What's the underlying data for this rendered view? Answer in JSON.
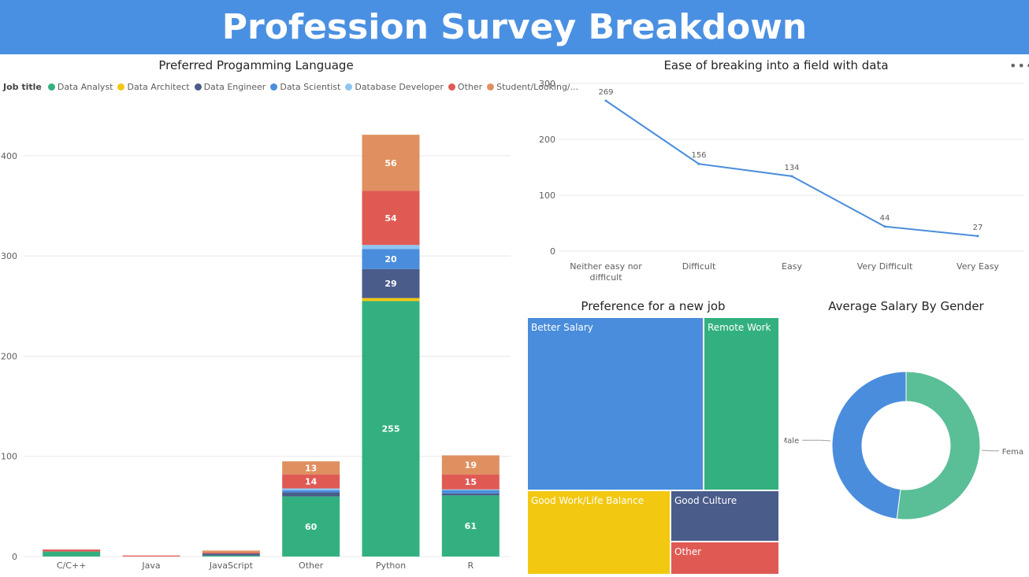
{
  "header": {
    "title": "Profession Survey Breakdown"
  },
  "more_label": "•••",
  "chart_data": [
    {
      "type": "bar",
      "stacked": true,
      "title": "Preferred Progamming Language",
      "legend_title": "Job title",
      "legend_position": "top-left",
      "categories": [
        "C/C++",
        "Java",
        "JavaScript",
        "Other",
        "Python",
        "R"
      ],
      "yticks": [
        0,
        100,
        200,
        300,
        400
      ],
      "ylim": [
        0,
        440
      ],
      "grid": true,
      "series": [
        {
          "name": "Data Analyst",
          "color": "#33b07f",
          "values": [
            5,
            0,
            1,
            60,
            255,
            61
          ],
          "labels": [
            "",
            "",
            "",
            "60",
            "255",
            "61"
          ]
        },
        {
          "name": "Data Architect",
          "color": "#f2c811",
          "values": [
            0,
            0,
            0,
            0,
            3,
            0
          ],
          "labels": [
            "",
            "",
            "",
            "",
            "",
            ""
          ]
        },
        {
          "name": "Data Engineer",
          "color": "#4a5c8a",
          "values": [
            0,
            0,
            2,
            4,
            29,
            2
          ],
          "labels": [
            "",
            "",
            "",
            "",
            "29",
            ""
          ]
        },
        {
          "name": "Data Scientist",
          "color": "#4a8ddc",
          "values": [
            0,
            0,
            0,
            2,
            20,
            3
          ],
          "labels": [
            "",
            "",
            "",
            "",
            "20",
            ""
          ]
        },
        {
          "name": "Database Developer",
          "color": "#8ec5f0",
          "values": [
            0,
            0,
            0,
            2,
            4,
            1
          ],
          "labels": [
            "",
            "",
            "",
            "",
            "",
            ""
          ]
        },
        {
          "name": "Other",
          "color": "#e05a54",
          "values": [
            2,
            1,
            1,
            14,
            54,
            15
          ],
          "labels": [
            "",
            "",
            "",
            "14",
            "54",
            "15"
          ]
        },
        {
          "name": "Student/Looking/...",
          "color": "#e09060",
          "values": [
            0,
            0,
            2,
            13,
            56,
            19
          ],
          "labels": [
            "",
            "",
            "",
            "13",
            "56",
            "19"
          ]
        }
      ]
    },
    {
      "type": "line",
      "title": "Ease of breaking into a field with data",
      "categories": [
        "Neither easy nor difficult",
        "Difficult",
        "Easy",
        "Very Difficult",
        "Very Easy"
      ],
      "values": [
        269,
        156,
        134,
        44,
        27
      ],
      "yticks": [
        0,
        100,
        200,
        300
      ],
      "ylim": [
        0,
        300
      ],
      "color": "#4a8ddc",
      "grid": true
    },
    {
      "type": "treemap",
      "title": "Preference for a new job",
      "items": [
        {
          "label": "Better Salary",
          "color": "#4a8ddc"
        },
        {
          "label": "Remote Work",
          "color": "#33b07f"
        },
        {
          "label": "Good Work/Life Balance",
          "color": "#f2c811"
        },
        {
          "label": "Good Culture",
          "color": "#4a5c8a"
        },
        {
          "label": "Other",
          "color": "#e05a54"
        }
      ]
    },
    {
      "type": "pie",
      "donut": true,
      "title": "Average Salary By Gender",
      "slices": [
        {
          "label": "Female",
          "value": 52,
          "color": "#5abe96"
        },
        {
          "label": "Male",
          "value": 48,
          "color": "#4a8ddc"
        }
      ]
    }
  ]
}
